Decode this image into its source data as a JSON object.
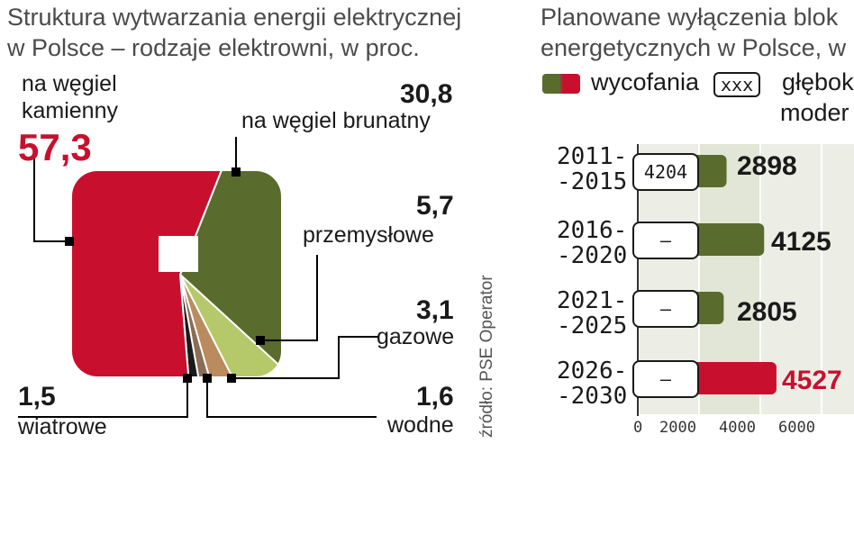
{
  "left": {
    "title": [
      "Struktura wytwarzania energii elektrycznej",
      "w Polsce – rodzaje elektrowni, w proc."
    ],
    "source": "źródło: PSE Operator",
    "colors": {
      "kamienny": "#c8102e",
      "brunatny": "#5a6b2e",
      "przemyslowe": "#b5c96a",
      "gazowe": "#b98b5e",
      "wodne": "#8b6d53",
      "wiatrowe": "#1a1a1a"
    }
  },
  "right": {
    "title": [
      "Planowane wyłączenia blok",
      "energetycznych w Polsce, w"
    ],
    "legend": {
      "wycofania": "wycofania",
      "box": "xxx",
      "gleb": "głębok",
      "moder": "moder"
    }
  },
  "chart_data": [
    {
      "type": "pie",
      "title": "Struktura wytwarzania energii elektrycznej w Polsce – rodzaje elektrowni, w proc.",
      "slices": [
        {
          "key": "kamienny",
          "label": "na węgiel kamienny",
          "value": 57.3,
          "display": "57,3"
        },
        {
          "key": "brunatny",
          "label": "na węgiel brunatny",
          "value": 30.8,
          "display": "30,8"
        },
        {
          "key": "przemyslowe",
          "label": "przemysłowe",
          "value": 5.7,
          "display": "5,7"
        },
        {
          "key": "gazowe",
          "label": "gazowe",
          "value": 3.1,
          "display": "3,1"
        },
        {
          "key": "wodne",
          "label": "wodne",
          "value": 1.6,
          "display": "1,6"
        },
        {
          "key": "wiatrowe",
          "label": "wiatrowe",
          "value": 1.5,
          "display": "1,5"
        }
      ]
    },
    {
      "type": "bar",
      "orientation": "horizontal",
      "categories": [
        "2011-\n-2015",
        "2016-\n-2020",
        "2021-\n-2025",
        "2026-\n-2030"
      ],
      "series": [
        {
          "name": "wycofania",
          "values": [
            2898,
            4125,
            2805,
            4527
          ],
          "display": [
            "2898",
            "4125",
            "2805",
            "4527"
          ]
        }
      ],
      "box_values": [
        "4204",
        "–",
        "–",
        "–"
      ],
      "xticks": [
        "0",
        "2000",
        "4000",
        "6000"
      ],
      "xlim": [
        0,
        6000
      ],
      "bar_colors": [
        "#5a6b2e",
        "#5a6b2e",
        "#5a6b2e",
        "#c8102e"
      ]
    }
  ]
}
